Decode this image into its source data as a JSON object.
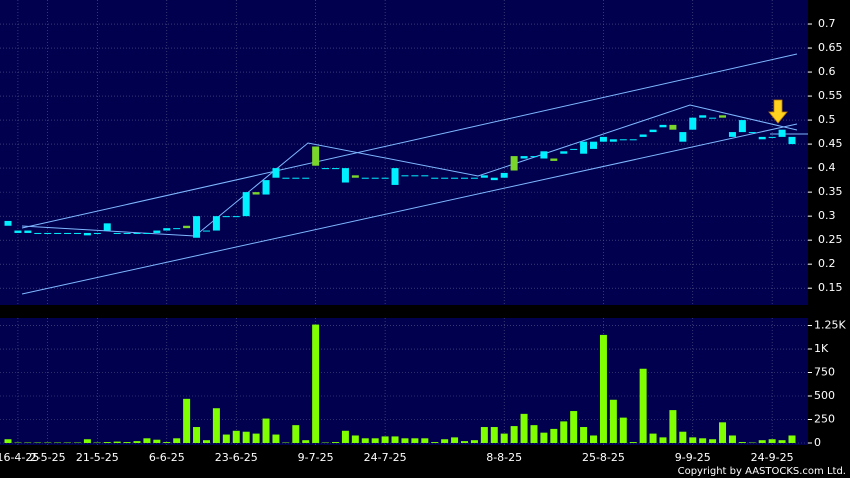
{
  "chart_data": {
    "type": "candlestick",
    "footer": "Copyright by AASTOCKS.com Ltd.",
    "up_color": "#00f0ff",
    "down_color": "#7ad62a",
    "volume_color": "#7fff00",
    "grid": true,
    "categories": [
      null,
      "16-4-25",
      null,
      null,
      "2-5-25",
      null,
      null,
      null,
      null,
      "21-5-25",
      null,
      null,
      null,
      null,
      null,
      null,
      "6-6-25",
      null,
      null,
      null,
      null,
      null,
      null,
      "23-6-25",
      null,
      null,
      null,
      null,
      null,
      null,
      null,
      "9-7-25",
      null,
      null,
      null,
      null,
      null,
      null,
      "24-7-25",
      null,
      null,
      null,
      null,
      null,
      null,
      null,
      null,
      null,
      null,
      null,
      "8-8-25",
      null,
      null,
      null,
      null,
      null,
      null,
      null,
      null,
      null,
      "25-8-25",
      null,
      null,
      null,
      null,
      null,
      null,
      null,
      null,
      "9-9-25",
      null,
      null,
      null,
      null,
      null,
      null,
      null,
      "24-9-25",
      null,
      null
    ],
    "open": [
      0.28,
      0.265,
      0.265,
      0.265,
      0.265,
      0.265,
      0.265,
      0.265,
      0.26,
      0.265,
      0.27,
      0.265,
      0.265,
      0.265,
      0.265,
      0.265,
      0.27,
      0.275,
      0.28,
      0.255,
      0.27,
      0.27,
      0.3,
      0.3,
      0.3,
      0.35,
      0.345,
      0.38,
      0.38,
      0.38,
      0.38,
      0.445,
      0.4,
      0.4,
      0.37,
      0.385,
      0.38,
      0.38,
      0.38,
      0.365,
      0.385,
      0.385,
      0.385,
      0.38,
      0.38,
      0.38,
      0.38,
      0.38,
      0.38,
      0.375,
      0.38,
      0.425,
      0.42,
      0.425,
      0.42,
      0.42,
      0.43,
      0.44,
      0.43,
      0.44,
      0.455,
      0.455,
      0.46,
      0.46,
      0.465,
      0.475,
      0.485,
      0.49,
      0.455,
      0.48,
      0.505,
      0.505,
      0.51,
      0.465,
      0.475,
      0.475,
      0.46,
      0.465,
      0.465,
      0.45
    ],
    "close": [
      0.29,
      0.27,
      0.27,
      0.265,
      0.265,
      0.265,
      0.265,
      0.265,
      0.265,
      0.265,
      0.285,
      0.265,
      0.265,
      0.265,
      0.265,
      0.27,
      0.275,
      0.275,
      0.275,
      0.3,
      0.27,
      0.3,
      0.3,
      0.3,
      0.35,
      0.345,
      0.375,
      0.4,
      0.38,
      0.38,
      0.38,
      0.405,
      0.4,
      0.4,
      0.4,
      0.38,
      0.38,
      0.38,
      0.38,
      0.4,
      0.385,
      0.385,
      0.385,
      0.38,
      0.38,
      0.38,
      0.38,
      0.38,
      0.385,
      0.38,
      0.39,
      0.395,
      0.425,
      0.425,
      0.435,
      0.415,
      0.435,
      0.44,
      0.455,
      0.455,
      0.465,
      0.46,
      0.46,
      0.46,
      0.47,
      0.48,
      0.49,
      0.48,
      0.475,
      0.505,
      0.51,
      0.505,
      0.505,
      0.475,
      0.5,
      0.475,
      0.465,
      0.465,
      0.48,
      0.465
    ],
    "volume": [
      40,
      5,
      5,
      5,
      5,
      5,
      5,
      5,
      40,
      5,
      10,
      15,
      10,
      20,
      50,
      35,
      10,
      50,
      470,
      170,
      30,
      370,
      90,
      130,
      120,
      100,
      260,
      90,
      5,
      190,
      30,
      1260,
      5,
      10,
      130,
      80,
      50,
      50,
      70,
      70,
      50,
      50,
      50,
      10,
      40,
      60,
      20,
      30,
      170,
      170,
      100,
      180,
      310,
      190,
      110,
      150,
      230,
      340,
      170,
      80,
      1150,
      460,
      270,
      10,
      790,
      100,
      60,
      350,
      120,
      60,
      50,
      40,
      220,
      80,
      10,
      5,
      30,
      40,
      30,
      80
    ],
    "ylim": [
      0.115,
      0.75
    ],
    "yticks": [
      0.15,
      0.2,
      0.25,
      0.3,
      0.35,
      0.4,
      0.45,
      0.5,
      0.55,
      0.6,
      0.65,
      0.7
    ],
    "y2lim": [
      0,
      1330
    ],
    "y2ticks": [
      0,
      250,
      500,
      750,
      {
        "value": 1000,
        "label": "1K"
      },
      {
        "value": 1250,
        "label": "1.25K"
      }
    ]
  }
}
